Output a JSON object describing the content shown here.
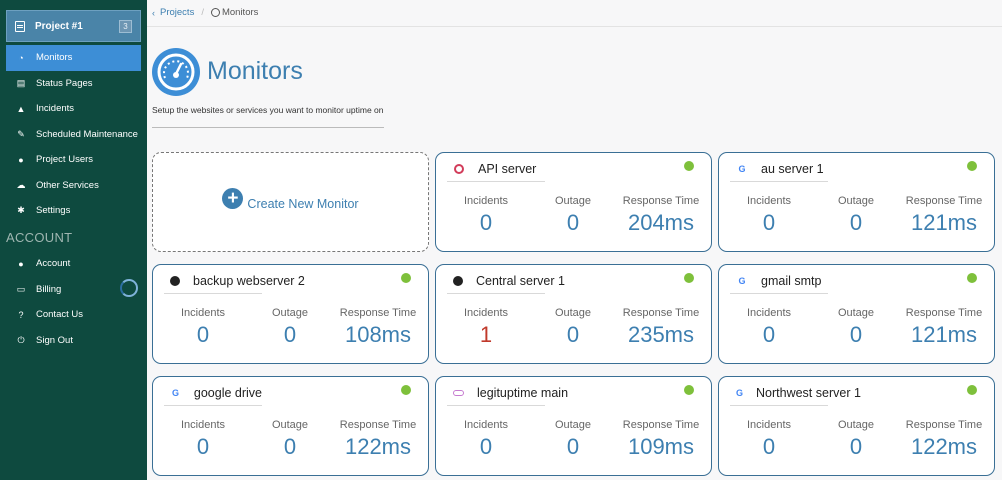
{
  "sidebar": {
    "project": {
      "name": "Project #1",
      "badge": "3"
    },
    "items": [
      {
        "label": "Monitors",
        "icon": "dashboard-icon",
        "active": true
      },
      {
        "label": "Status Pages",
        "icon": "document-icon"
      },
      {
        "label": "Incidents",
        "icon": "cone-icon"
      },
      {
        "label": "Scheduled Maintenance",
        "icon": "wrench-icon"
      },
      {
        "label": "Project Users",
        "icon": "users-icon"
      },
      {
        "label": "Other Services",
        "icon": "cloud-icon"
      },
      {
        "label": "Settings",
        "icon": "gear-icon"
      }
    ],
    "account_section": "ACCOUNT",
    "account_items": [
      {
        "label": "Account",
        "icon": "user-icon"
      },
      {
        "label": "Billing",
        "icon": "credit-card-icon"
      },
      {
        "label": "Contact Us",
        "icon": "help-icon"
      },
      {
        "label": "Sign Out",
        "icon": "power-icon"
      }
    ]
  },
  "breadcrumb": {
    "parent": "Projects",
    "current": "Monitors"
  },
  "page": {
    "title": "Monitors",
    "subtitle": "Setup the websites or services you want to monitor uptime on"
  },
  "create_label": "Create New Monitor",
  "stat_labels": {
    "incidents": "Incidents",
    "outage": "Outage",
    "response": "Response Time"
  },
  "monitors": [
    {
      "name": "API server",
      "icon": "api-icon",
      "status_color": "#7ec03b",
      "incidents": "0",
      "outage": "0",
      "response": "204ms"
    },
    {
      "name": "au server 1",
      "icon": "google-icon",
      "status_color": "#7ec03b",
      "incidents": "0",
      "outage": "0",
      "response": "121ms"
    },
    {
      "name": "backup webserver 2",
      "icon": "globe-icon",
      "status_color": "#7ec03b",
      "incidents": "0",
      "outage": "0",
      "response": "108ms"
    },
    {
      "name": "Central server 1",
      "icon": "globe-icon",
      "status_color": "#7ec03b",
      "incidents": "1",
      "outage": "0",
      "response": "235ms"
    },
    {
      "name": "gmail smtp",
      "icon": "google-icon",
      "status_color": "#7ec03b",
      "incidents": "0",
      "outage": "0",
      "response": "121ms"
    },
    {
      "name": "google drive",
      "icon": "google-icon",
      "status_color": "#7ec03b",
      "incidents": "0",
      "outage": "0",
      "response": "122ms"
    },
    {
      "name": "legituptime main",
      "icon": "link-icon",
      "status_color": "#7ec03b",
      "incidents": "0",
      "outage": "0",
      "response": "109ms"
    },
    {
      "name": "Northwest server 1",
      "icon": "google-icon",
      "status_color": "#7ec03b",
      "incidents": "0",
      "outage": "0",
      "response": "122ms"
    }
  ]
}
